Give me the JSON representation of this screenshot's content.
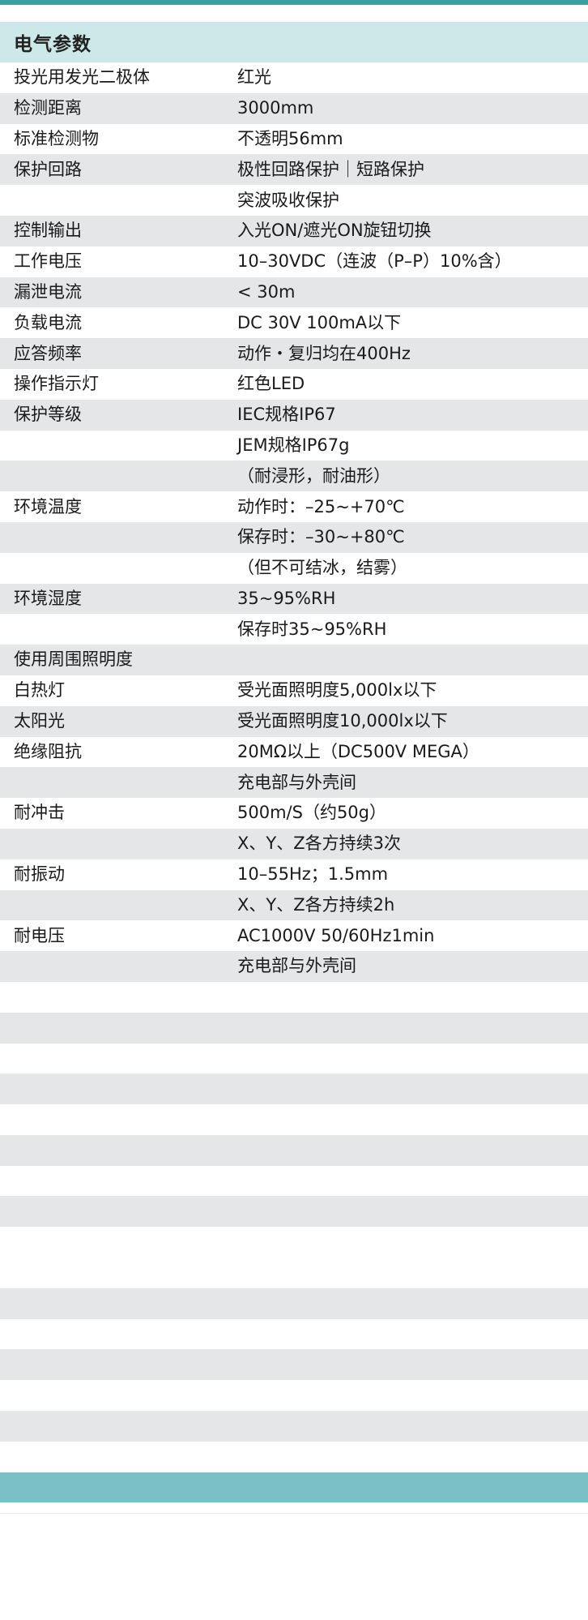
{
  "page": {
    "section_title": "电气参数"
  },
  "colors": {
    "top_bar": "#35a2a4",
    "section_header_bg": "#cde8e9",
    "stripe_bg": "#e5e6e8",
    "bottom_band": "#7bc0c5",
    "text": "#1a1a1a"
  },
  "table": {
    "rows": [
      {
        "label": "投光用发光二极体",
        "value": "红光",
        "shaded": false,
        "tall": false
      },
      {
        "label": "检测距离",
        "value": "3000mm",
        "shaded": true,
        "tall": false
      },
      {
        "label": "标准检测物",
        "value": "不透明56mm",
        "shaded": false,
        "tall": false
      },
      {
        "label": "保护回路",
        "value": "极性回路保护｜短路保护",
        "shaded": true,
        "tall": false
      },
      {
        "label": "",
        "value": "突波吸收保护",
        "shaded": false,
        "tall": false
      },
      {
        "label": "控制输出",
        "value": "入光ON/遮光ON旋钮切换",
        "shaded": true,
        "tall": false
      },
      {
        "label": "工作电压",
        "value": "10–30VDC（连波（P–P）10%含）",
        "shaded": false,
        "tall": false
      },
      {
        "label": "漏泄电流",
        "value": "< 30m",
        "shaded": true,
        "tall": false
      },
      {
        "label": "负载电流",
        "value": "DC 30V 100mA以下",
        "shaded": false,
        "tall": false
      },
      {
        "label": "应答频率",
        "value": "动作・复归均在400Hz",
        "shaded": true,
        "tall": false
      },
      {
        "label": "操作指示灯",
        "value": "红色LED",
        "shaded": false,
        "tall": false
      },
      {
        "label": "保护等级",
        "value": "IEC规格IP67",
        "shaded": true,
        "tall": false
      },
      {
        "label": "",
        "value": "JEM规格IP67g",
        "shaded": false,
        "tall": false
      },
      {
        "label": "",
        "value": "（耐浸形，耐油形）",
        "shaded": true,
        "tall": false
      },
      {
        "label": "环境温度",
        "value": "动作时：–25~+70℃",
        "shaded": false,
        "tall": false
      },
      {
        "label": "",
        "value": "保存时：–30~+80℃",
        "shaded": true,
        "tall": false
      },
      {
        "label": "",
        "value": "（但不可结冰，结雾）",
        "shaded": false,
        "tall": false
      },
      {
        "label": "环境湿度",
        "value": "35~95%RH",
        "shaded": true,
        "tall": false
      },
      {
        "label": "",
        "value": "保存时35~95%RH",
        "shaded": false,
        "tall": false
      },
      {
        "label": "使用周围照明度",
        "value": "",
        "shaded": true,
        "tall": false
      },
      {
        "label": "白热灯",
        "value": "受光面照明度5,000lx以下",
        "shaded": false,
        "tall": false
      },
      {
        "label": "太阳光",
        "value": "受光面照明度10,000lx以下",
        "shaded": true,
        "tall": false
      },
      {
        "label": "绝缘阻抗",
        "value": "20MΩ以上（DC500V MEGA）",
        "shaded": false,
        "tall": false
      },
      {
        "label": "",
        "value": "充电部与外壳间",
        "shaded": true,
        "tall": false
      },
      {
        "label": "耐冲击",
        "value": "500m/S（约50g）",
        "shaded": false,
        "tall": false
      },
      {
        "label": "",
        "value": "X、Y、Z各方持续3次",
        "shaded": true,
        "tall": false
      },
      {
        "label": "耐振动",
        "value": "10–55Hz；1.5mm",
        "shaded": false,
        "tall": false
      },
      {
        "label": "",
        "value": "X、Y、Z各方持续2h",
        "shaded": true,
        "tall": false
      },
      {
        "label": "耐电压",
        "value": "AC1000V 50/60Hz1min",
        "shaded": false,
        "tall": false
      },
      {
        "label": "",
        "value": "充电部与外壳间",
        "shaded": true,
        "tall": false
      },
      {
        "label": "",
        "value": "",
        "shaded": false,
        "tall": false
      },
      {
        "label": "",
        "value": "",
        "shaded": true,
        "tall": false
      },
      {
        "label": "",
        "value": "",
        "shaded": false,
        "tall": false
      },
      {
        "label": "",
        "value": "",
        "shaded": true,
        "tall": false
      },
      {
        "label": "",
        "value": "",
        "shaded": false,
        "tall": false
      },
      {
        "label": "",
        "value": "",
        "shaded": true,
        "tall": false
      },
      {
        "label": "",
        "value": "",
        "shaded": false,
        "tall": false
      },
      {
        "label": "",
        "value": "",
        "shaded": true,
        "tall": false
      },
      {
        "label": "",
        "value": "",
        "shaded": false,
        "tall": true
      },
      {
        "label": "",
        "value": "",
        "shaded": true,
        "tall": false
      },
      {
        "label": "",
        "value": "",
        "shaded": false,
        "tall": false
      },
      {
        "label": "",
        "value": "",
        "shaded": true,
        "tall": false
      },
      {
        "label": "",
        "value": "",
        "shaded": false,
        "tall": false
      },
      {
        "label": "",
        "value": "",
        "shaded": true,
        "tall": false
      },
      {
        "label": "",
        "value": "",
        "shaded": false,
        "tall": false
      }
    ]
  }
}
